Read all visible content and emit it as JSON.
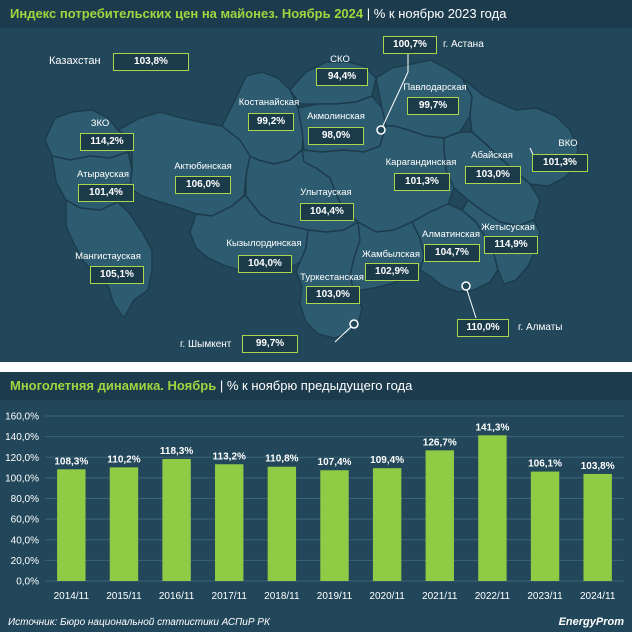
{
  "map": {
    "title": "Индекс потребительских цен на майонез. Ноябрь 2024",
    "subtitle": "| % к ноябрю 2023 года",
    "kazakhstan": {
      "label": "Казахстан",
      "value": "103,8%"
    },
    "regions": [
      {
        "id": "zko",
        "label": "ЗКО",
        "value": "114,2%"
      },
      {
        "id": "atyrau",
        "label": "Атырауская",
        "value": "101,4%"
      },
      {
        "id": "mangystau",
        "label": "Мангистауская",
        "value": "105,1%"
      },
      {
        "id": "aktobe",
        "label": "Актюбинская",
        "value": "106,0%"
      },
      {
        "id": "kostanay",
        "label": "Костанайская",
        "value": "99,2%"
      },
      {
        "id": "sko",
        "label": "СКО",
        "value": "94,4%"
      },
      {
        "id": "akmola",
        "label": "Акмолинская",
        "value": "98,0%"
      },
      {
        "id": "pavlodar",
        "label": "Павлодарская",
        "value": "99,7%"
      },
      {
        "id": "vko",
        "label": "ВКО",
        "value": "101,3%"
      },
      {
        "id": "abay",
        "label": "Абайская",
        "value": "103,0%"
      },
      {
        "id": "karaganda",
        "label": "Карагандинская",
        "value": "101,3%"
      },
      {
        "id": "ulytau",
        "label": "Улытауская",
        "value": "104,4%"
      },
      {
        "id": "kyzylorda",
        "label": "Кызылординская",
        "value": "104,0%"
      },
      {
        "id": "turkestan",
        "label": "Туркестанская",
        "value": "103,0%"
      },
      {
        "id": "zhambyl",
        "label": "Жамбылская",
        "value": "102,9%"
      },
      {
        "id": "almaty_reg",
        "label": "Алматинская",
        "value": "104,7%"
      },
      {
        "id": "zhetysu",
        "label": "Жетысуская",
        "value": "114,9%"
      }
    ],
    "cities": [
      {
        "id": "astana",
        "label": "г. Астана",
        "value": "100,7%"
      },
      {
        "id": "almaty",
        "label": "г. Алматы",
        "value": "110,0%"
      },
      {
        "id": "shymkent",
        "label": "г. Шымкент",
        "value": "99,7%"
      }
    ]
  },
  "chart": {
    "title": "Многолетняя динамика. Ноябрь",
    "subtitle": "| % к ноябрю предыдущего года"
  },
  "chart_data": {
    "type": "bar",
    "categories": [
      "2014/11",
      "2015/11",
      "2016/11",
      "2017/11",
      "2018/11",
      "2019/11",
      "2020/11",
      "2021/11",
      "2022/11",
      "2023/11",
      "2024/11"
    ],
    "values": [
      108.3,
      110.2,
      118.3,
      113.2,
      110.8,
      107.4,
      109.4,
      126.7,
      141.3,
      106.1,
      103.8
    ],
    "value_labels": [
      "108,3%",
      "110,2%",
      "118,3%",
      "113,2%",
      "110,8%",
      "107,4%",
      "109,4%",
      "126,7%",
      "141,3%",
      "106,1%",
      "103,8%"
    ],
    "y_ticks": [
      "0,0%",
      "20,0%",
      "40,0%",
      "60,0%",
      "80,0%",
      "100,0%",
      "120,0%",
      "140,0%",
      "160,0%"
    ],
    "ylim": [
      0,
      160
    ],
    "grid": true,
    "bar_color": "#8fcb45"
  },
  "footer": {
    "source": "Источник: Бюро национальной статистики АСПиР РК",
    "logo": "EnergyProm"
  }
}
